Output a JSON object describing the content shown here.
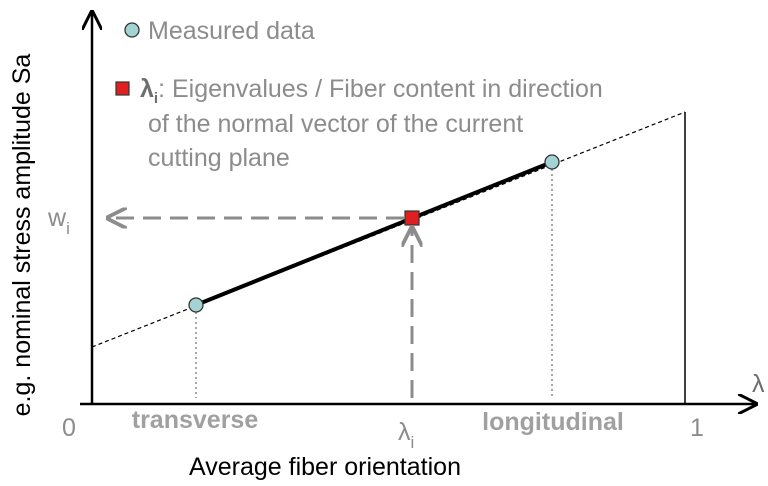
{
  "y_axis": {
    "label": "e.g. nominal stress amplitude Sa",
    "marker": "w",
    "marker_sub": "i"
  },
  "x_axis": {
    "label": "Average fiber orientation",
    "symbol": "λ",
    "start": "0",
    "end": "1",
    "marker": "λ",
    "marker_sub": "i",
    "left_label": "transverse",
    "right_label": "longitudinal"
  },
  "legend": {
    "measured": "Measured data",
    "eigen_symbol": "λ",
    "eigen_sub": "i",
    "eigen_lines": [
      ": Eigenvalues / Fiber content in direction",
      "of the normal vector of the current",
      "cutting plane"
    ]
  }
}
